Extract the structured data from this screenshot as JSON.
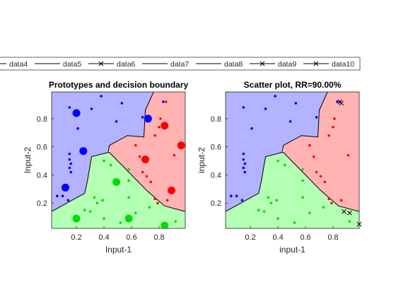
{
  "legend": {
    "entries": [
      {
        "label": "data4",
        "marker": "none"
      },
      {
        "label": "data5",
        "marker": "none"
      },
      {
        "label": "data6",
        "marker": "x"
      },
      {
        "label": "data7",
        "marker": "none"
      },
      {
        "label": "data8",
        "marker": "none"
      },
      {
        "label": "data9",
        "marker": "x"
      },
      {
        "label": "data10",
        "marker": "x"
      }
    ],
    "placement": "top, horizontal"
  },
  "colors": {
    "class1_region": "#b3b3ff",
    "class2_region": "#ffb3b3",
    "class3_region": "#b3ffb3",
    "class1_points": "#0000ff",
    "class2_points": "#ff0000",
    "class3_points": "#00dd00",
    "boundary": "#000000",
    "misclassified": "#000000"
  },
  "chart_data": [
    {
      "type": "scatter",
      "title": "Prototypes and decision boundary",
      "xlabel": "Input-1",
      "ylabel": "Input-2",
      "xlim": [
        0.02,
        0.99
      ],
      "ylim": [
        0.02,
        0.99
      ],
      "xticks": [
        "0.2",
        "0.4",
        "0.6",
        "0.8"
      ],
      "xtick_values": [
        0.2,
        0.4,
        0.6,
        0.8
      ],
      "yticks": [
        "0.2",
        "0.4",
        "0.6",
        "0.8"
      ],
      "ytick_values": [
        0.2,
        0.4,
        0.6,
        0.8
      ],
      "regions": [
        {
          "class": 1,
          "polygon": [
            [
              0.02,
              0.99
            ],
            [
              0.76,
              0.99
            ],
            [
              0.7,
              0.86
            ],
            [
              0.69,
              0.67
            ],
            [
              0.57,
              0.68
            ],
            [
              0.44,
              0.61
            ],
            [
              0.43,
              0.56
            ],
            [
              0.31,
              0.53
            ],
            [
              0.28,
              0.36
            ],
            [
              0.26,
              0.27
            ],
            [
              0.02,
              0.14
            ]
          ]
        },
        {
          "class": 2,
          "polygon": [
            [
              0.76,
              0.99
            ],
            [
              0.99,
              0.99
            ],
            [
              0.99,
              0.14
            ],
            [
              0.84,
              0.18
            ],
            [
              0.71,
              0.29
            ],
            [
              0.6,
              0.4
            ],
            [
              0.44,
              0.56
            ],
            [
              0.44,
              0.61
            ],
            [
              0.57,
              0.68
            ],
            [
              0.69,
              0.67
            ],
            [
              0.7,
              0.86
            ]
          ]
        },
        {
          "class": 3,
          "polygon": [
            [
              0.02,
              0.14
            ],
            [
              0.26,
              0.27
            ],
            [
              0.28,
              0.36
            ],
            [
              0.31,
              0.53
            ],
            [
              0.43,
              0.56
            ],
            [
              0.44,
              0.56
            ],
            [
              0.6,
              0.4
            ],
            [
              0.71,
              0.29
            ],
            [
              0.84,
              0.18
            ],
            [
              0.99,
              0.14
            ],
            [
              0.99,
              0.02
            ],
            [
              0.02,
              0.02
            ]
          ]
        }
      ],
      "boundaries": [
        [
          [
            0.02,
            0.14
          ],
          [
            0.26,
            0.27
          ],
          [
            0.28,
            0.36
          ],
          [
            0.31,
            0.53
          ],
          [
            0.43,
            0.56
          ]
        ],
        [
          [
            0.76,
            0.99
          ],
          [
            0.7,
            0.86
          ],
          [
            0.69,
            0.67
          ],
          [
            0.57,
            0.68
          ],
          [
            0.44,
            0.61
          ],
          [
            0.43,
            0.56
          ]
        ],
        [
          [
            0.43,
            0.56
          ],
          [
            0.44,
            0.56
          ],
          [
            0.6,
            0.4
          ],
          [
            0.71,
            0.29
          ],
          [
            0.84,
            0.18
          ],
          [
            0.99,
            0.14
          ]
        ]
      ],
      "prototypes": [
        {
          "class": 1,
          "x": 0.2,
          "y": 0.84
        },
        {
          "class": 1,
          "x": 0.72,
          "y": 0.8
        },
        {
          "class": 1,
          "x": 0.25,
          "y": 0.57
        },
        {
          "class": 1,
          "x": 0.12,
          "y": 0.31
        },
        {
          "class": 2,
          "x": 0.84,
          "y": 0.75
        },
        {
          "class": 2,
          "x": 0.96,
          "y": 0.61
        },
        {
          "class": 2,
          "x": 0.7,
          "y": 0.51
        },
        {
          "class": 2,
          "x": 0.89,
          "y": 0.29
        },
        {
          "class": 3,
          "x": 0.49,
          "y": 0.35
        },
        {
          "class": 3,
          "x": 0.2,
          "y": 0.09
        },
        {
          "class": 3,
          "x": 0.58,
          "y": 0.09
        },
        {
          "class": 3,
          "x": 0.84,
          "y": 0.04
        }
      ],
      "points": [
        {
          "class": 1,
          "x": 0.15,
          "y": 0.88
        },
        {
          "class": 1,
          "x": 0.31,
          "y": 0.87
        },
        {
          "class": 1,
          "x": 0.38,
          "y": 0.96
        },
        {
          "class": 1,
          "x": 0.49,
          "y": 0.78
        },
        {
          "class": 1,
          "x": 0.53,
          "y": 0.91
        },
        {
          "class": 1,
          "x": 0.21,
          "y": 0.73
        },
        {
          "class": 1,
          "x": 0.15,
          "y": 0.55
        },
        {
          "class": 1,
          "x": 0.15,
          "y": 0.51
        },
        {
          "class": 1,
          "x": 0.16,
          "y": 0.48
        },
        {
          "class": 1,
          "x": 0.15,
          "y": 0.45
        },
        {
          "class": 1,
          "x": 0.16,
          "y": 0.42
        },
        {
          "class": 1,
          "x": 0.06,
          "y": 0.25
        },
        {
          "class": 1,
          "x": 0.1,
          "y": 0.25
        },
        {
          "class": 1,
          "x": 0.14,
          "y": 0.22
        },
        {
          "class": 1,
          "x": 0.68,
          "y": 0.81
        },
        {
          "class": 1,
          "x": 0.83,
          "y": 0.92
        },
        {
          "class": 2,
          "x": 0.85,
          "y": 0.92
        },
        {
          "class": 2,
          "x": 0.81,
          "y": 0.8
        },
        {
          "class": 2,
          "x": 0.8,
          "y": 0.74
        },
        {
          "class": 2,
          "x": 0.77,
          "y": 0.68
        },
        {
          "class": 2,
          "x": 0.63,
          "y": 0.61
        },
        {
          "class": 2,
          "x": 0.66,
          "y": 0.53
        },
        {
          "class": 2,
          "x": 0.68,
          "y": 0.42
        },
        {
          "class": 2,
          "x": 0.71,
          "y": 0.39
        },
        {
          "class": 2,
          "x": 0.74,
          "y": 0.35
        },
        {
          "class": 2,
          "x": 0.77,
          "y": 0.23
        },
        {
          "class": 2,
          "x": 0.79,
          "y": 0.2
        },
        {
          "class": 2,
          "x": 0.86,
          "y": 0.22
        },
        {
          "class": 2,
          "x": 0.91,
          "y": 0.54
        },
        {
          "class": 3,
          "x": 0.4,
          "y": 0.5
        },
        {
          "class": 3,
          "x": 0.45,
          "y": 0.47
        },
        {
          "class": 3,
          "x": 0.58,
          "y": 0.44
        },
        {
          "class": 3,
          "x": 0.58,
          "y": 0.36
        },
        {
          "class": 3,
          "x": 0.33,
          "y": 0.24
        },
        {
          "class": 3,
          "x": 0.35,
          "y": 0.2
        },
        {
          "class": 3,
          "x": 0.39,
          "y": 0.22
        },
        {
          "class": 3,
          "x": 0.3,
          "y": 0.14
        },
        {
          "class": 3,
          "x": 0.26,
          "y": 0.15
        },
        {
          "class": 3,
          "x": 0.4,
          "y": 0.09
        },
        {
          "class": 3,
          "x": 0.58,
          "y": 0.24
        },
        {
          "class": 3,
          "x": 0.63,
          "y": 0.13
        },
        {
          "class": 3,
          "x": 0.73,
          "y": 0.17
        },
        {
          "class": 3,
          "x": 0.52,
          "y": 0.06
        },
        {
          "class": 3,
          "x": 0.92,
          "y": 0.07
        }
      ]
    },
    {
      "type": "scatter",
      "title": "Scatter plot, RR=90.00%",
      "xlabel": "input-1",
      "ylabel": "input-2",
      "xlim": [
        0.02,
        0.99
      ],
      "ylim": [
        0.02,
        0.99
      ],
      "xticks": [
        "0.2",
        "0.4",
        "0.6",
        "0.8"
      ],
      "xtick_values": [
        0.2,
        0.4,
        0.6,
        0.8
      ],
      "yticks": [
        "0.2",
        "0.4",
        "0.6",
        "0.8"
      ],
      "ytick_values": [
        0.2,
        0.4,
        0.6,
        0.8
      ],
      "recognition_rate": "90.00%",
      "misclassified": [
        {
          "x": 0.85,
          "y": 0.92
        },
        {
          "x": 0.86,
          "y": 0.91
        },
        {
          "x": 0.88,
          "y": 0.14
        },
        {
          "x": 0.92,
          "y": 0.13
        },
        {
          "x": 0.99,
          "y": 0.05
        }
      ]
    }
  ]
}
